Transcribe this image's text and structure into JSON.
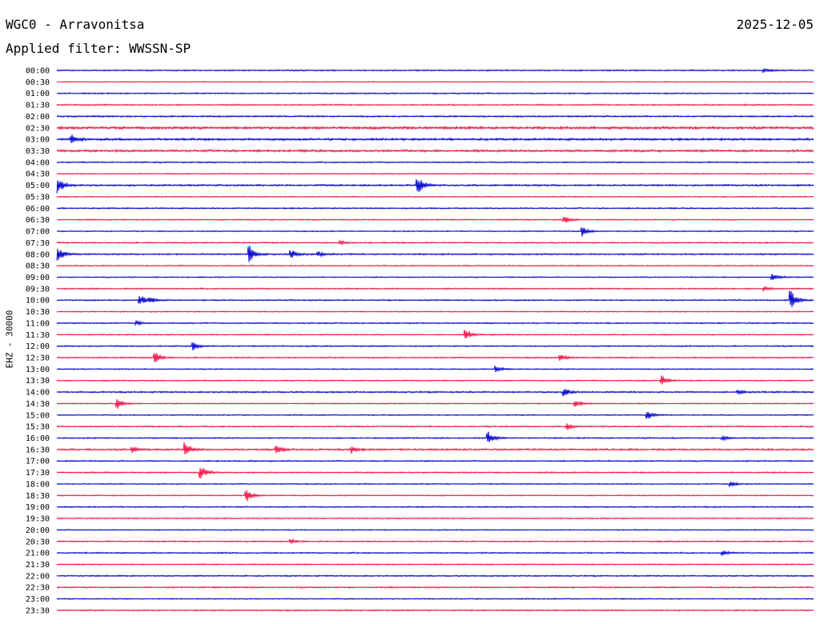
{
  "header": {
    "station": "WGC0 - Arravonitsa",
    "date": "2025-12-05",
    "filter": "Applied filter: WWSSN-SP"
  },
  "chart_data": {
    "type": "line",
    "title": "WGC0 - Arravonitsa",
    "subtitle": "Applied filter: WWSSN-SP",
    "ylabel": "EHZ - 30000",
    "xlabel": "",
    "grid": false,
    "legend": "none",
    "colors": [
      "#0000cc",
      "#ee1144"
    ],
    "rows": [
      "00:00",
      "00:30",
      "01:00",
      "01:30",
      "02:00",
      "02:30",
      "03:00",
      "03:30",
      "04:00",
      "04:30",
      "05:00",
      "05:30",
      "06:00",
      "06:30",
      "07:00",
      "07:30",
      "08:00",
      "08:30",
      "09:00",
      "09:30",
      "10:00",
      "10:30",
      "11:00",
      "11:30",
      "12:00",
      "12:30",
      "13:00",
      "13:30",
      "14:00",
      "14:30",
      "15:00",
      "15:30",
      "16:00",
      "16:30",
      "17:00",
      "17:30",
      "18:00",
      "18:30",
      "19:00",
      "19:30",
      "20:00",
      "20:30",
      "21:00",
      "21:30",
      "22:00",
      "22:30",
      "23:00",
      "23:30"
    ],
    "noise": [
      0.6,
      0.4,
      0.6,
      0.6,
      0.7,
      1.2,
      1.0,
      1.0,
      0.6,
      0.5,
      0.8,
      0.5,
      0.6,
      0.5,
      0.5,
      0.6,
      0.7,
      0.5,
      0.5,
      0.6,
      0.6,
      0.5,
      0.6,
      0.5,
      0.6,
      0.6,
      0.5,
      0.5,
      0.7,
      0.5,
      0.5,
      0.6,
      0.6,
      0.8,
      0.6,
      0.6,
      0.5,
      0.5,
      0.6,
      0.5,
      0.5,
      0.6,
      0.6,
      0.5,
      0.6,
      0.6,
      0.5,
      0.6
    ],
    "events": [
      {
        "row": 0,
        "x": 0.935,
        "amp": 3
      },
      {
        "row": 6,
        "x": 0.02,
        "amp": 6
      },
      {
        "row": 10,
        "x": 0.0,
        "amp": 14
      },
      {
        "row": 10,
        "x": 0.477,
        "amp": 13
      },
      {
        "row": 13,
        "x": 0.67,
        "amp": 6
      },
      {
        "row": 14,
        "x": 0.695,
        "amp": 7
      },
      {
        "row": 15,
        "x": 0.375,
        "amp": 3
      },
      {
        "row": 16,
        "x": 0.0,
        "amp": 14
      },
      {
        "row": 16,
        "x": 0.255,
        "amp": 13
      },
      {
        "row": 16,
        "x": 0.31,
        "amp": 6
      },
      {
        "row": 16,
        "x": 0.345,
        "amp": 4
      },
      {
        "row": 18,
        "x": 0.945,
        "amp": 7
      },
      {
        "row": 19,
        "x": 0.935,
        "amp": 3
      },
      {
        "row": 20,
        "x": 0.11,
        "amp": 8
      },
      {
        "row": 20,
        "x": 0.123,
        "amp": 4
      },
      {
        "row": 20,
        "x": 0.97,
        "amp": 14
      },
      {
        "row": 22,
        "x": 0.105,
        "amp": 3
      },
      {
        "row": 23,
        "x": 0.54,
        "amp": 8
      },
      {
        "row": 24,
        "x": 0.18,
        "amp": 7
      },
      {
        "row": 25,
        "x": 0.13,
        "amp": 9
      },
      {
        "row": 25,
        "x": 0.665,
        "amp": 5
      },
      {
        "row": 26,
        "x": 0.58,
        "amp": 5
      },
      {
        "row": 27,
        "x": 0.8,
        "amp": 7
      },
      {
        "row": 28,
        "x": 0.67,
        "amp": 6
      },
      {
        "row": 28,
        "x": 0.9,
        "amp": 3
      },
      {
        "row": 29,
        "x": 0.08,
        "amp": 8
      },
      {
        "row": 29,
        "x": 0.685,
        "amp": 6
      },
      {
        "row": 30,
        "x": 0.78,
        "amp": 7
      },
      {
        "row": 31,
        "x": 0.675,
        "amp": 4
      },
      {
        "row": 32,
        "x": 0.57,
        "amp": 9
      },
      {
        "row": 32,
        "x": 0.88,
        "amp": 3
      },
      {
        "row": 33,
        "x": 0.1,
        "amp": 4
      },
      {
        "row": 33,
        "x": 0.17,
        "amp": 9
      },
      {
        "row": 33,
        "x": 0.29,
        "amp": 7
      },
      {
        "row": 33,
        "x": 0.39,
        "amp": 5
      },
      {
        "row": 35,
        "x": 0.19,
        "amp": 10
      },
      {
        "row": 36,
        "x": 0.89,
        "amp": 5
      },
      {
        "row": 37,
        "x": 0.25,
        "amp": 10
      },
      {
        "row": 41,
        "x": 0.31,
        "amp": 3
      },
      {
        "row": 42,
        "x": 0.88,
        "amp": 3
      }
    ]
  }
}
